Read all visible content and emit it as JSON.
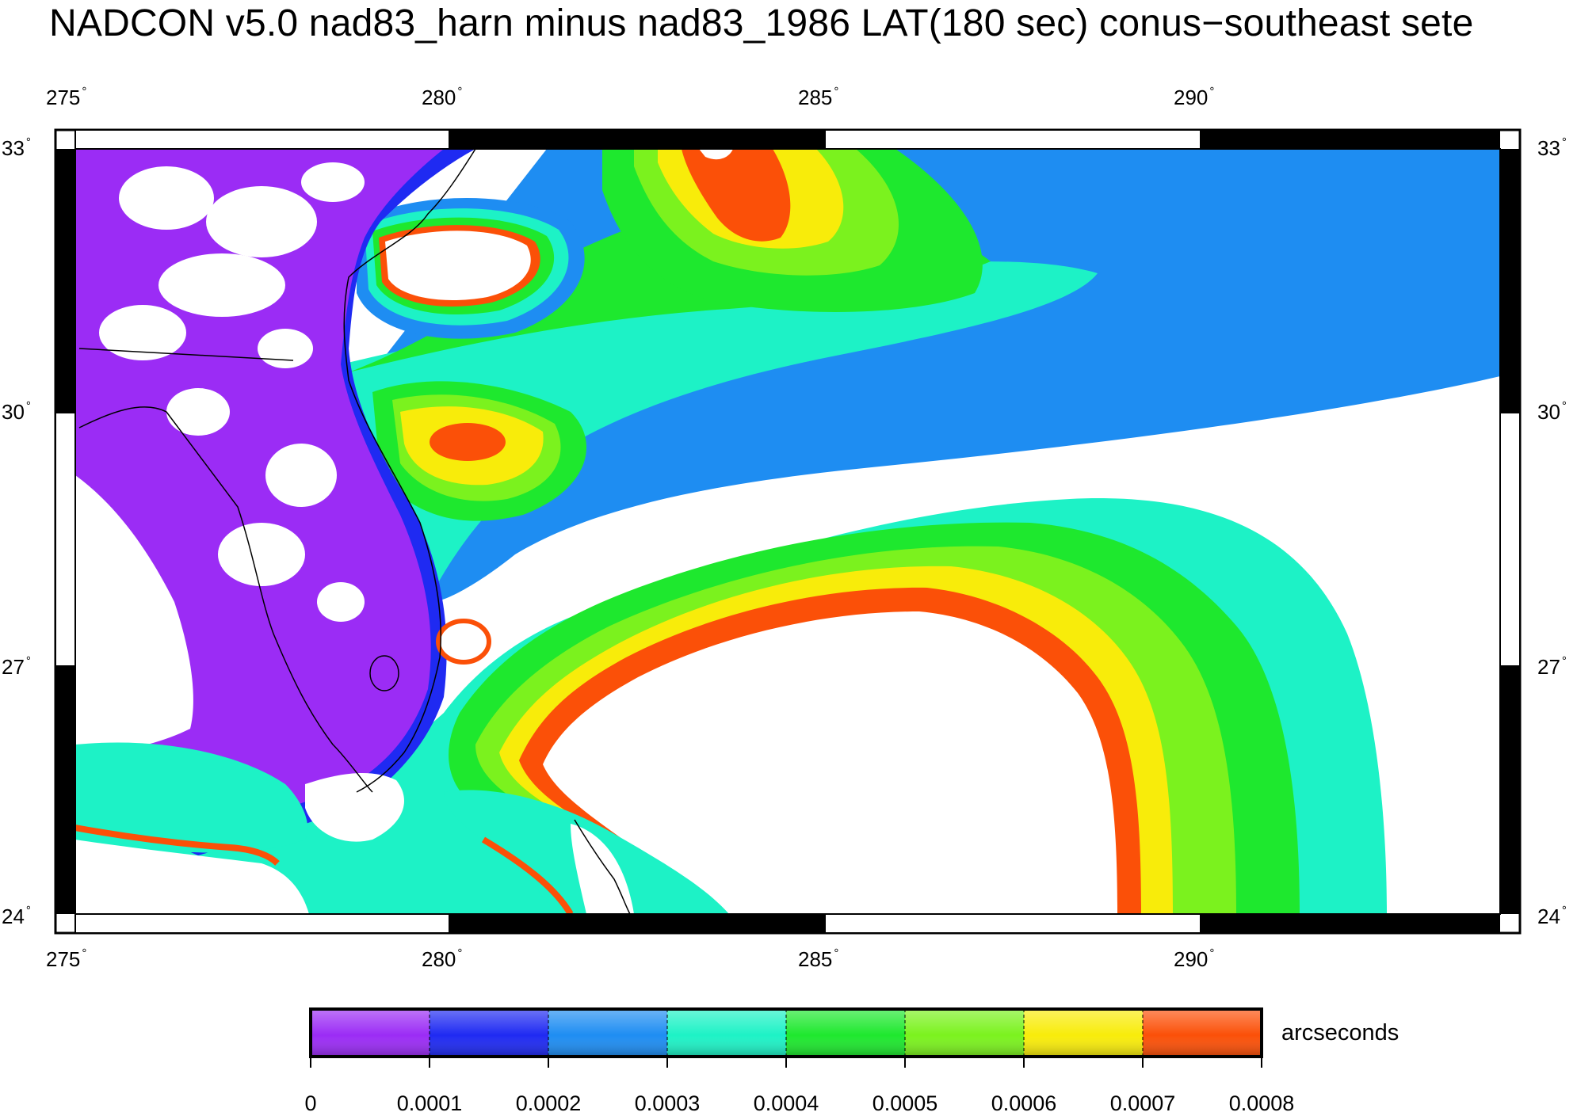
{
  "title": "NADCON v5.0 nad83_harn minus nad83_1986 LAT(180 sec) conus−southeast sete",
  "map": {
    "x_ticks": [
      "275",
      "280",
      "285",
      "290"
    ],
    "y_ticks": [
      "33",
      "30",
      "27",
      "24"
    ],
    "x_range": [
      275,
      294.5
    ],
    "y_range": [
      24,
      33
    ],
    "contour_colors": [
      "#9b2cf5",
      "#1f2af2",
      "#1e8df2",
      "#1df2c6",
      "#1ee82e",
      "#7bf21e",
      "#f8ec0a",
      "#fb5008"
    ]
  },
  "colorbar": {
    "unit_label": "arcseconds",
    "tick_labels": [
      "0",
      "0.0001",
      "0.0002",
      "0.0003",
      "0.0004",
      "0.0005",
      "0.0006",
      "0.0007",
      "0.0008"
    ],
    "colors": [
      "#9b2cf5",
      "#1f2af2",
      "#1e8df2",
      "#1df2c6",
      "#1ee82e",
      "#7bf21e",
      "#f8ec0a",
      "#fb5008"
    ]
  }
}
